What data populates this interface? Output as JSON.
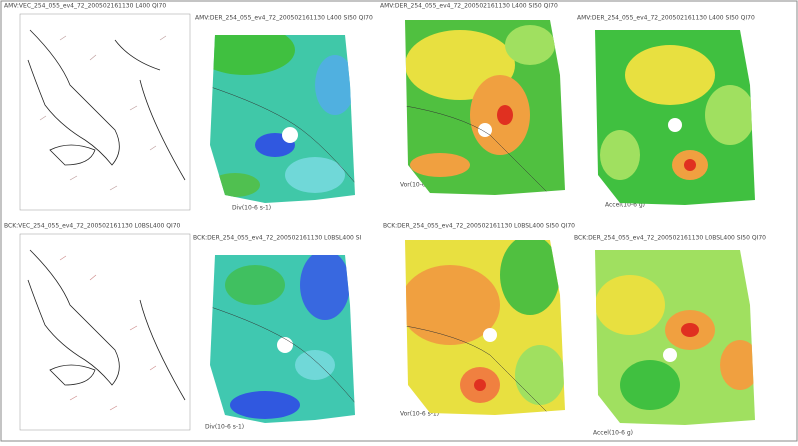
{
  "row1": {
    "panels": [
      {
        "title": "AMV:VEC_254_055_ev4_72_200502161130 L400 QI70"
      },
      {
        "title": "AMV:DER_254_055_ev4_72_200502161130 L400 SI50 QI70",
        "caption": "Div(10-6 s-1)"
      },
      {
        "title": "AMV:DER_254_055_ev4_72_200502161130 L400 SI50 QI70",
        "caption": "Vor(10-6 s-1)"
      },
      {
        "title": "AMV:DER_254_055_ev4_72_200502161130 L400 SI50 QI70",
        "caption": "Accel(10-6 g)"
      }
    ]
  },
  "row2": {
    "panels": [
      {
        "title": "BCK:VEC_254_055_ev4_72_200502161130 L0BSL400 QI70"
      },
      {
        "title": "BCK:DER_254_055_ev4_72_200502161130 L0BSL400 SI",
        "caption": "Div(10-6 s-1)"
      },
      {
        "title": "BCK:DER_254_055_ev4_72_200502161130 L0BSL400 SI50 QI70",
        "caption": "Vor(10-6 s-1)"
      },
      {
        "title": "BCK:DER_254_055_ev4_72_200502161130 L0BSL400 SI50 QI70",
        "caption": "Accel(10-6 g)"
      }
    ]
  }
}
